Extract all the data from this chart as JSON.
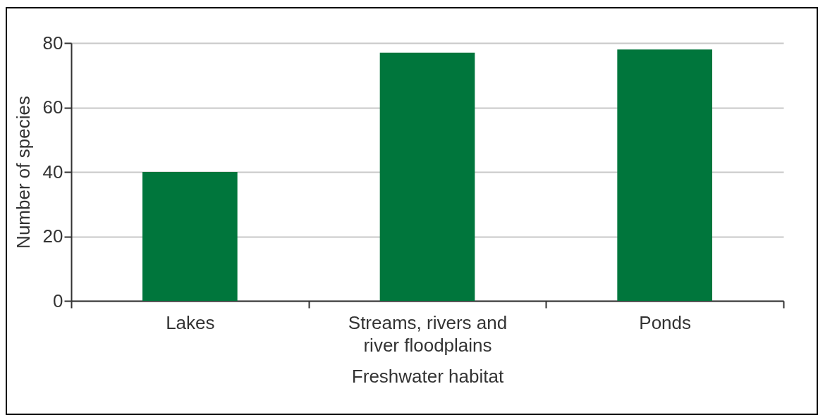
{
  "chart_data": {
    "type": "bar",
    "xlabel": "Freshwater habitat",
    "ylabel": "Number of species",
    "categories": [
      "Lakes",
      "Streams, rivers and river floodplains",
      "Ponds"
    ],
    "values": [
      40,
      77,
      78
    ],
    "color": "#00763c",
    "ylim": [
      0,
      80
    ],
    "yticks": [
      0,
      20,
      40,
      60,
      80
    ],
    "grid": "y"
  }
}
